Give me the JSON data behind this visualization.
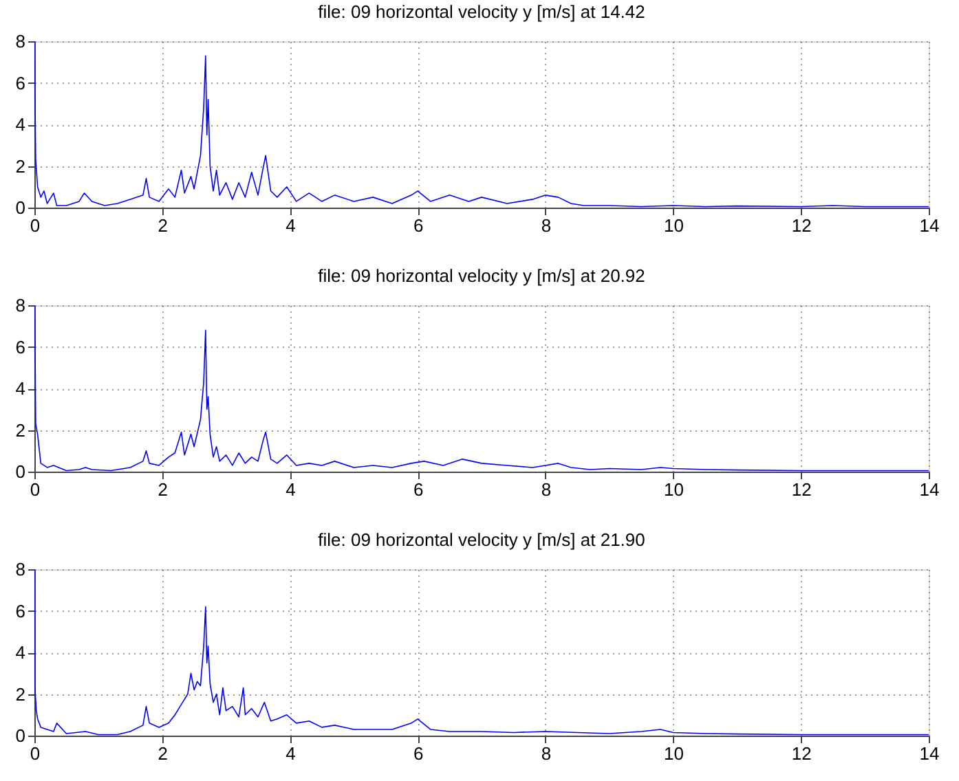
{
  "chart_data": [
    {
      "type": "line",
      "title": "file: 09 horizontal velocity y [m/s] at 14.42",
      "xlim": [
        0,
        14
      ],
      "xticks": [
        0,
        2,
        4,
        6,
        8,
        10,
        12,
        14
      ],
      "ylim": [
        0,
        8
      ],
      "yticks": [
        0,
        2,
        4,
        6,
        8
      ],
      "grid": true,
      "marker": "none",
      "line_style": "solid",
      "x": [
        0,
        0.01,
        0.02,
        0.05,
        0.1,
        0.15,
        0.2,
        0.3,
        0.35,
        0.5,
        0.7,
        0.78,
        0.9,
        1.1,
        1.3,
        1.5,
        1.7,
        1.75,
        1.8,
        1.95,
        2.1,
        2.2,
        2.3,
        2.35,
        2.45,
        2.5,
        2.6,
        2.65,
        2.68,
        2.7,
        2.72,
        2.75,
        2.8,
        2.85,
        2.9,
        3.0,
        3.1,
        3.2,
        3.3,
        3.4,
        3.5,
        3.58,
        3.62,
        3.7,
        3.8,
        3.95,
        4.1,
        4.3,
        4.5,
        4.7,
        5.0,
        5.3,
        5.6,
        5.9,
        6.0,
        6.2,
        6.5,
        6.8,
        7.0,
        7.4,
        7.8,
        8.0,
        8.2,
        8.4,
        8.6,
        9.0,
        9.5,
        10,
        10.5,
        11,
        12,
        12.5,
        13,
        14
      ],
      "series": [
        {
          "color": "#0000ff",
          "values": [
            8,
            5.3,
            2.3,
            1.0,
            0.5,
            0.8,
            0.2,
            0.7,
            0.1,
            0.1,
            0.3,
            0.7,
            0.3,
            0.1,
            0.2,
            0.4,
            0.6,
            1.4,
            0.5,
            0.3,
            0.9,
            0.5,
            1.8,
            0.7,
            1.5,
            0.9,
            2.5,
            4.8,
            7.3,
            3.5,
            5.2,
            2.0,
            0.8,
            1.8,
            0.6,
            1.2,
            0.4,
            1.2,
            0.5,
            1.7,
            0.6,
            1.9,
            2.5,
            0.8,
            0.5,
            1.0,
            0.3,
            0.7,
            0.3,
            0.6,
            0.3,
            0.5,
            0.2,
            0.6,
            0.8,
            0.3,
            0.6,
            0.3,
            0.5,
            0.2,
            0.4,
            0.6,
            0.5,
            0.2,
            0.1,
            0.1,
            0.05,
            0.1,
            0.05,
            0.08,
            0.05,
            0.1,
            0.05,
            0.05
          ]
        }
      ]
    },
    {
      "type": "line",
      "title": "file: 09 horizontal velocity y [m/s] at 20.92",
      "xlim": [
        0,
        14
      ],
      "xticks": [
        0,
        2,
        4,
        6,
        8,
        10,
        12,
        14
      ],
      "ylim": [
        0,
        8
      ],
      "yticks": [
        0,
        2,
        4,
        6,
        8
      ],
      "grid": true,
      "marker": "none",
      "line_style": "solid",
      "x": [
        0,
        0.01,
        0.02,
        0.05,
        0.1,
        0.2,
        0.3,
        0.5,
        0.7,
        0.8,
        0.9,
        1.2,
        1.5,
        1.7,
        1.75,
        1.8,
        1.95,
        2.1,
        2.2,
        2.3,
        2.35,
        2.45,
        2.5,
        2.6,
        2.65,
        2.68,
        2.7,
        2.72,
        2.75,
        2.8,
        2.85,
        2.9,
        3.0,
        3.1,
        3.2,
        3.3,
        3.4,
        3.5,
        3.58,
        3.62,
        3.7,
        3.8,
        3.95,
        4.1,
        4.3,
        4.5,
        4.7,
        5.0,
        5.3,
        5.6,
        5.9,
        6.1,
        6.4,
        6.7,
        7.0,
        7.4,
        7.8,
        8.0,
        8.2,
        8.4,
        8.7,
        9.0,
        9.5,
        9.8,
        10,
        10.5,
        11,
        12,
        13,
        14
      ],
      "series": [
        {
          "color": "#0000ff",
          "values": [
            8,
            6.3,
            2.3,
            1.8,
            0.4,
            0.2,
            0.3,
            0.05,
            0.1,
            0.2,
            0.1,
            0.05,
            0.2,
            0.5,
            1.0,
            0.4,
            0.3,
            0.7,
            0.9,
            1.9,
            0.8,
            1.8,
            1.2,
            2.5,
            4.3,
            6.8,
            3.0,
            3.6,
            1.8,
            0.7,
            1.2,
            0.5,
            0.8,
            0.3,
            0.9,
            0.4,
            0.7,
            0.5,
            1.5,
            1.9,
            0.6,
            0.4,
            0.8,
            0.3,
            0.4,
            0.3,
            0.5,
            0.2,
            0.3,
            0.2,
            0.4,
            0.5,
            0.3,
            0.6,
            0.4,
            0.3,
            0.2,
            0.3,
            0.4,
            0.2,
            0.1,
            0.15,
            0.1,
            0.2,
            0.15,
            0.1,
            0.08,
            0.05,
            0.05,
            0.05
          ]
        }
      ]
    },
    {
      "type": "line",
      "title": "file: 09 horizontal velocity y [m/s] at 21.90",
      "xlim": [
        0,
        14
      ],
      "xticks": [
        0,
        2,
        4,
        6,
        8,
        10,
        12,
        14
      ],
      "ylim": [
        0,
        8
      ],
      "yticks": [
        0,
        2,
        4,
        6,
        8
      ],
      "grid": true,
      "marker": "none",
      "line_style": "solid",
      "x": [
        0,
        0.01,
        0.03,
        0.05,
        0.1,
        0.2,
        0.3,
        0.35,
        0.5,
        0.8,
        1.0,
        1.3,
        1.5,
        1.7,
        1.75,
        1.8,
        1.95,
        2.1,
        2.2,
        2.3,
        2.4,
        2.45,
        2.5,
        2.55,
        2.6,
        2.65,
        2.68,
        2.7,
        2.72,
        2.75,
        2.8,
        2.85,
        2.9,
        2.95,
        3.0,
        3.1,
        3.2,
        3.27,
        3.3,
        3.4,
        3.5,
        3.6,
        3.7,
        3.8,
        3.95,
        4.1,
        4.3,
        4.5,
        4.7,
        5.0,
        5.3,
        5.6,
        5.9,
        6.0,
        6.2,
        6.5,
        7.0,
        7.5,
        8.0,
        8.5,
        9.0,
        9.5,
        9.8,
        10,
        10.5,
        11,
        12,
        13,
        14
      ],
      "series": [
        {
          "color": "#0000ff",
          "values": [
            8,
            2.2,
            1.2,
            0.8,
            0.4,
            0.3,
            0.2,
            0.6,
            0.1,
            0.2,
            0.05,
            0.05,
            0.2,
            0.5,
            1.4,
            0.6,
            0.4,
            0.6,
            1.0,
            1.5,
            2.0,
            3.0,
            2.2,
            2.6,
            2.4,
            4.3,
            6.2,
            3.5,
            4.3,
            2.5,
            1.6,
            2.0,
            1.0,
            2.3,
            1.2,
            1.4,
            0.9,
            2.3,
            1.0,
            1.3,
            0.9,
            1.6,
            0.7,
            0.8,
            1.0,
            0.6,
            0.7,
            0.4,
            0.5,
            0.3,
            0.3,
            0.3,
            0.6,
            0.8,
            0.3,
            0.2,
            0.2,
            0.15,
            0.2,
            0.15,
            0.1,
            0.2,
            0.3,
            0.15,
            0.1,
            0.08,
            0.05,
            0.05,
            0.05
          ]
        }
      ]
    }
  ]
}
